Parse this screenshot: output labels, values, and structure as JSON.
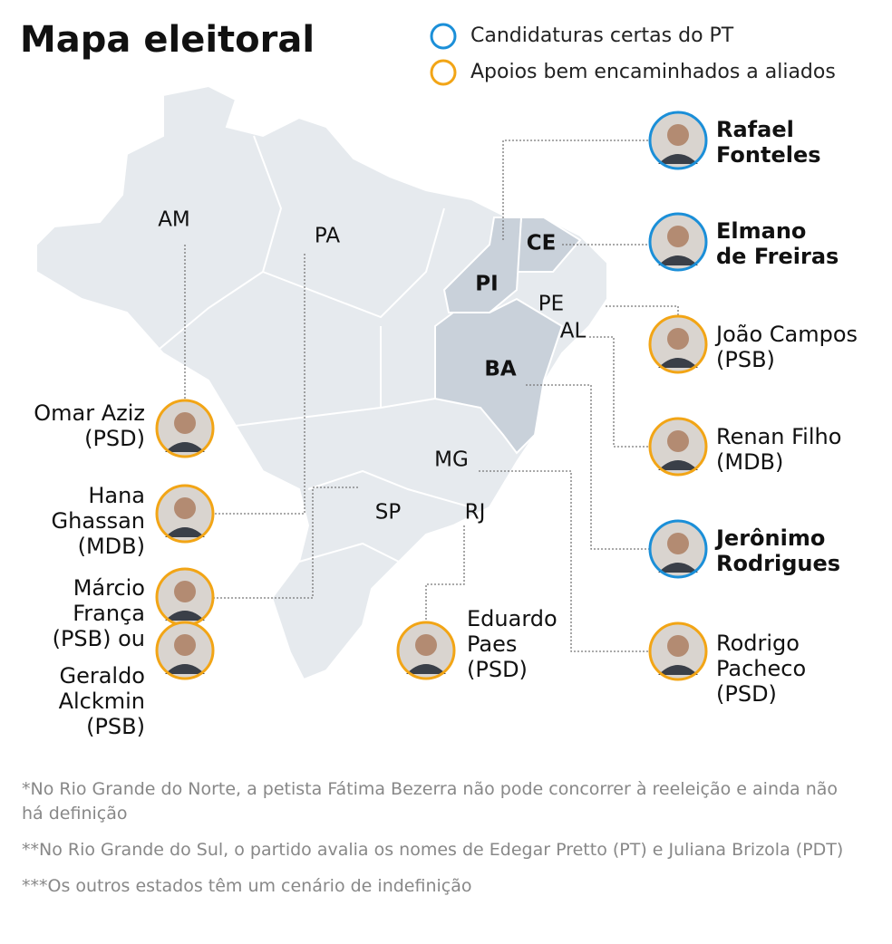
{
  "title": "Mapa eleitoral",
  "legend": [
    {
      "label": "Candidaturas certas do PT",
      "color": "#1b8fd8"
    },
    {
      "label": "Apoios bem encaminhados a aliados",
      "color": "#f2a516"
    }
  ],
  "states": [
    {
      "label": "AM"
    },
    {
      "label": "PA"
    },
    {
      "label": "CE",
      "highlight": true
    },
    {
      "label": "PI",
      "highlight": true
    },
    {
      "label": "PE"
    },
    {
      "label": "AL"
    },
    {
      "label": "BA",
      "highlight": true
    },
    {
      "label": "MG"
    },
    {
      "label": "SP"
    },
    {
      "label": "RJ"
    }
  ],
  "candidates": [
    {
      "lines": [
        "Rafael",
        "Fonteles"
      ],
      "legend": 0
    },
    {
      "lines": [
        "Elmano",
        "de Freiras"
      ],
      "legend": 0
    },
    {
      "lines": [
        "João Campos",
        "(PSB)"
      ],
      "legend": 1
    },
    {
      "lines": [
        "Renan Filho",
        "(MDB)"
      ],
      "legend": 1
    },
    {
      "lines": [
        "Jerônimo",
        "Rodrigues"
      ],
      "legend": 0
    },
    {
      "lines": [
        "Rodrigo",
        "Pacheco",
        "(PSD)"
      ],
      "legend": 1
    },
    {
      "lines": [
        "Omar Aziz",
        "(PSD)"
      ],
      "legend": 1
    },
    {
      "lines": [
        "Hana",
        "Ghassan",
        "(MDB)"
      ],
      "legend": 1
    },
    {
      "lines": [
        "Márcio",
        "França",
        "(PSB) ou"
      ],
      "legend": 1
    },
    {
      "lines": [
        "Geraldo",
        "Alckmin",
        "(PSB)"
      ],
      "legend": 1
    },
    {
      "lines": [
        "Eduardo",
        "Paes",
        "(PSD)"
      ],
      "legend": 1
    }
  ],
  "footnotes": [
    "*No Rio Grande do Norte, a petista Fátima Bezerra não pode concorrer à reeleição e ainda não há definição",
    "**No Rio Grande do Sul, o partido avalia os nomes de Edegar Pretto (PT) e Juliana Brizola (PDT)",
    "***Os outros estados têm um cenário de indefinição"
  ]
}
